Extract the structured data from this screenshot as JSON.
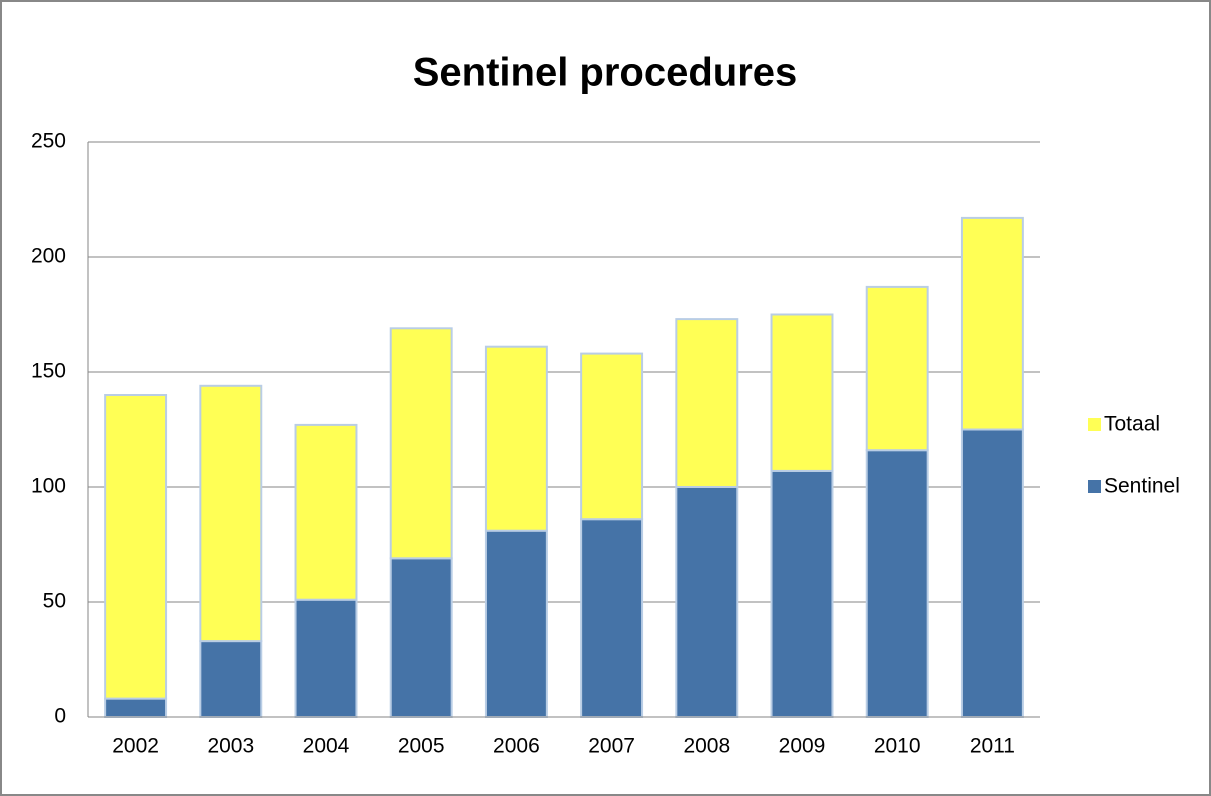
{
  "chart_data": {
    "type": "stacked_bar",
    "title": "Sentinel procedures",
    "categories": [
      "2002",
      "2003",
      "2004",
      "2005",
      "2006",
      "2007",
      "2008",
      "2009",
      "2010",
      "2011"
    ],
    "series": [
      {
        "name": "Sentinel",
        "color": "#4573a7",
        "values": [
          8,
          33,
          51,
          69,
          81,
          86,
          100,
          107,
          116,
          125
        ]
      },
      {
        "name": "Totaal",
        "color": "#ffff55",
        "values": [
          132,
          111,
          76,
          100,
          80,
          72,
          73,
          68,
          71,
          92
        ]
      }
    ],
    "ylim": [
      0,
      250
    ],
    "yticks": [
      0,
      50,
      100,
      150,
      200,
      250
    ],
    "grid": true,
    "legend": "right"
  }
}
